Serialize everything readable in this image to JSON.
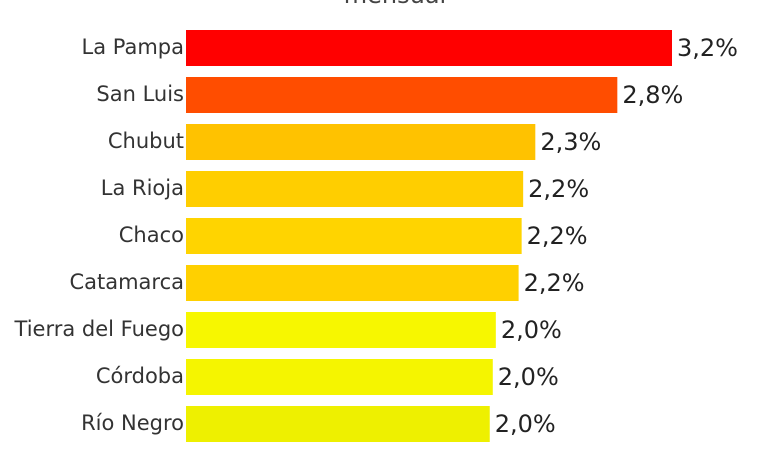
{
  "chart_data": {
    "type": "hbar",
    "title": "mensual",
    "categories": [
      "La Pampa",
      "San Luis",
      "Chubut",
      "La Rioja",
      "Chaco",
      "Catamarca",
      "Tierra del Fuego",
      "Córdoba",
      "Río Negro"
    ],
    "values": [
      3.2,
      2.84,
      2.3,
      2.22,
      2.21,
      2.19,
      2.04,
      2.02,
      2.0
    ],
    "value_labels": [
      "3,2%",
      "2,8%",
      "2,3%",
      "2,2%",
      "2,2%",
      "2,2%",
      "2,0%",
      "2,0%",
      "2,0%"
    ],
    "colors": [
      "#ff0000",
      "#ff4d00",
      "#ffc200",
      "#ffce00",
      "#ffd400",
      "#ffd000",
      "#f7f700",
      "#f5f500",
      "#eef000"
    ],
    "xlim": [
      0,
      3.2
    ]
  }
}
